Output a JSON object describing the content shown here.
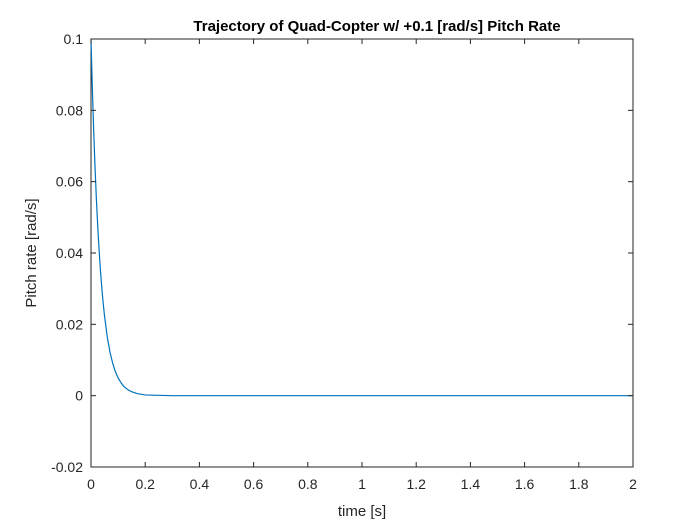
{
  "chart_data": {
    "type": "line",
    "title": "Trajectory of Quad-Copter w/ +0.1 [rad/s] Pitch Rate",
    "xlabel": "time [s]",
    "ylabel": "Pitch rate [rad/s]",
    "xlim": [
      0,
      2
    ],
    "ylim": [
      -0.02,
      0.1
    ],
    "x_ticks": [
      0,
      0.2,
      0.4,
      0.6,
      0.8,
      1,
      1.2,
      1.4,
      1.6,
      1.8,
      2
    ],
    "x_tick_labels": [
      "0",
      "0.2",
      "0.4",
      "0.6",
      "0.8",
      "1",
      "1.2",
      "1.4",
      "1.6",
      "1.8",
      "2"
    ],
    "y_ticks": [
      -0.02,
      0,
      0.02,
      0.04,
      0.06,
      0.08,
      0.1
    ],
    "y_tick_labels": [
      "-0.02",
      "0",
      "0.02",
      "0.04",
      "0.06",
      "0.08",
      "0.1"
    ],
    "grid": false,
    "series": [
      {
        "color": "#0072BD",
        "x": [
          0,
          0.005,
          0.01,
          0.015,
          0.02,
          0.025,
          0.03,
          0.035,
          0.04,
          0.045,
          0.05,
          0.06,
          0.07,
          0.08,
          0.09,
          0.1,
          0.11,
          0.12,
          0.13,
          0.14,
          0.15,
          0.17,
          0.2,
          0.25,
          0.3,
          0.4,
          0.6,
          0.8,
          1,
          1.2,
          1.4,
          1.6,
          1.8,
          2
        ],
        "y": [
          0.1,
          0.0861,
          0.0741,
          0.0638,
          0.0549,
          0.0472,
          0.0407,
          0.035,
          0.0301,
          0.0259,
          0.0223,
          0.0165,
          0.0122,
          0.0091,
          0.0067,
          0.005,
          0.0037,
          0.0027,
          0.002,
          0.0015,
          0.0011,
          0.0006,
          0.0002,
          0.0001,
          0,
          0,
          0,
          0,
          0,
          0,
          0,
          0,
          0,
          0
        ]
      }
    ]
  }
}
